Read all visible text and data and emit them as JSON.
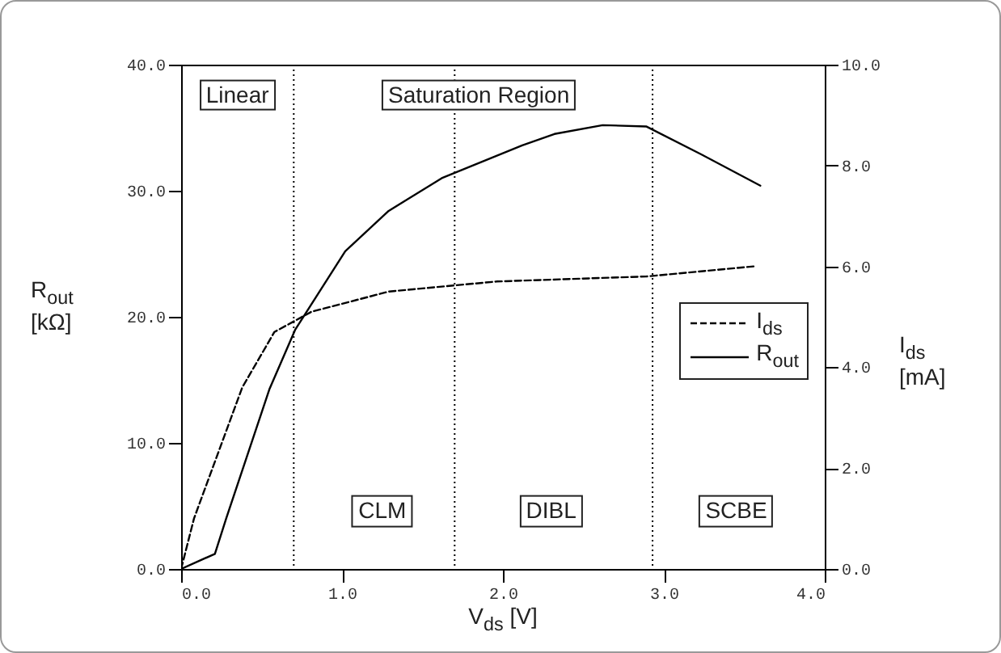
{
  "chart_data": {
    "type": "line",
    "xlabel": "V$_{ds}$ [V]",
    "ylabel": "R$_{out}$ [kΩ]",
    "y2label": "I$_{ds}$ [mA]",
    "xlim": [
      0,
      4
    ],
    "xticks": [
      {
        "value": 0,
        "label": "0.0"
      },
      {
        "value": 1,
        "label": "1.0"
      },
      {
        "value": 2,
        "label": "2.0"
      },
      {
        "value": 3,
        "label": "3.0"
      },
      {
        "value": 4,
        "label": "4.0"
      }
    ],
    "ylim": [
      0,
      40
    ],
    "yticks": [
      {
        "value": 0,
        "label": "0.0"
      },
      {
        "value": 10,
        "label": "10.0"
      },
      {
        "value": 20,
        "label": "20.0"
      },
      {
        "value": 30,
        "label": "30.0"
      },
      {
        "value": 40,
        "label": "40.0"
      }
    ],
    "y2lim": [
      0,
      10
    ],
    "y2ticks": [
      {
        "value": 0,
        "label": "0.0"
      },
      {
        "value": 2,
        "label": "2.0"
      },
      {
        "value": 4,
        "label": "4.0"
      },
      {
        "value": 6,
        "label": "6.0"
      },
      {
        "value": 8,
        "label": "8.0"
      },
      {
        "value": 10,
        "label": "10.0"
      }
    ],
    "grid": false,
    "legend": "right",
    "marker": "none",
    "series": [
      {
        "name": "I$_{ds}$",
        "color": "#000000",
        "axis": "y2",
        "line_style": "dashed",
        "x": [
          0,
          0.08,
          0.38,
          0.58,
          0.81,
          1.29,
          1.96,
          2.89,
          3.56
        ],
        "values": [
          0,
          1.0,
          3.6,
          4.7,
          5.1,
          5.5,
          5.7,
          5.8,
          6.0
        ]
      },
      {
        "name": "R$_{out}$",
        "color": "#000000",
        "line_style": "solid",
        "x": [
          0,
          0.21,
          0.28,
          0.55,
          0.71,
          1.02,
          1.29,
          1.62,
          2.12,
          2.32,
          2.62,
          2.89,
          3.23,
          3.6
        ],
        "values": [
          0,
          1.2,
          4,
          14.3,
          19,
          25.2,
          28.4,
          31,
          33.6,
          34.5,
          35.2,
          35.1,
          32.9,
          30.4
        ]
      }
    ],
    "ref_lines": [
      {
        "axis": "x",
        "value": 0.7,
        "line_style": "dotted",
        "color": "#000000"
      },
      {
        "axis": "x",
        "value": 1.7,
        "line_style": "dotted",
        "color": "#000000"
      },
      {
        "axis": "x",
        "value": 2.93,
        "line_style": "dotted",
        "color": "#000000"
      }
    ],
    "annotations": [
      "Linear",
      "Saturation Region",
      "CLM",
      "DIBL",
      "SCBE"
    ]
  }
}
